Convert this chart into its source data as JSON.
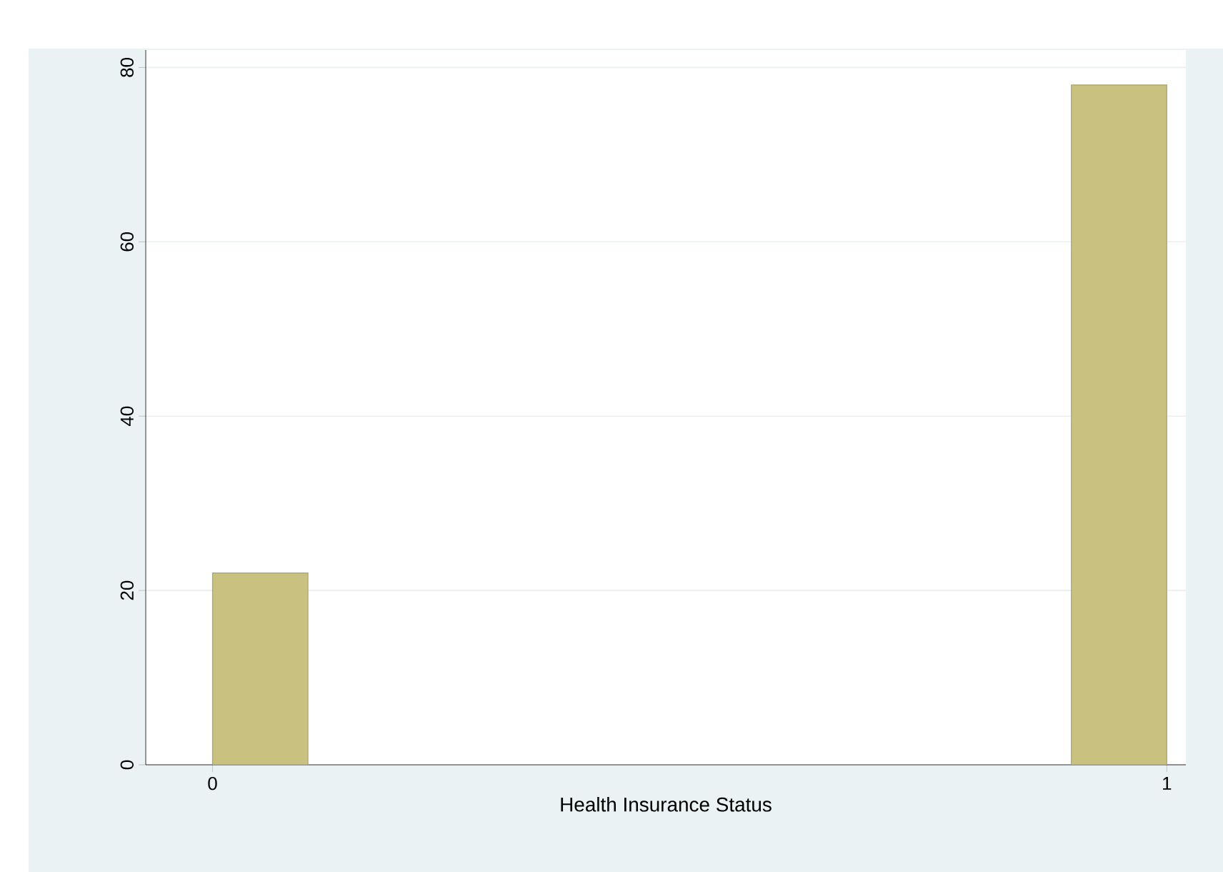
{
  "chart_data": {
    "type": "histogram",
    "xlabel": "Health Insurance Status",
    "bins": [
      0,
      0.1,
      0.2,
      0.3,
      0.4,
      0.5,
      0.6,
      0.7,
      0.8,
      0.9,
      1
    ],
    "values": [
      22,
      0,
      0,
      0,
      0,
      0,
      0,
      0,
      0,
      78
    ],
    "color": "#c9c180",
    "xlim": [
      -0.07,
      1.02
    ],
    "xticks": [
      0,
      1
    ],
    "ylim": [
      0,
      82
    ],
    "yticks": [
      0,
      20,
      40,
      60,
      80
    ],
    "grid": "y"
  }
}
